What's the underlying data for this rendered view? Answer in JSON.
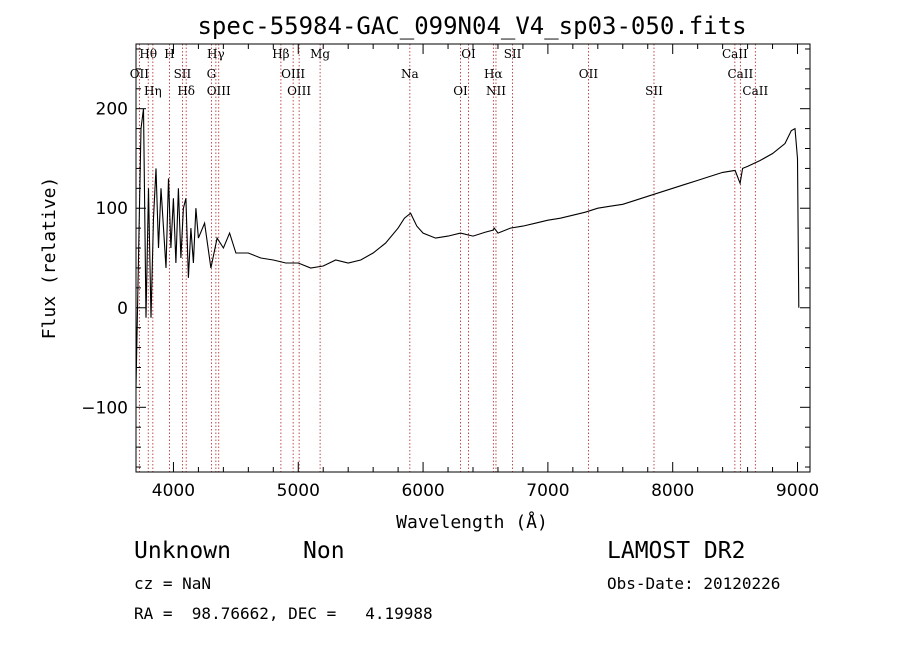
{
  "chart_data": {
    "type": "line",
    "title": "spec-55984-GAC_099N04_V4_sp03-050.fits",
    "xlabel": "Wavelength (Å)",
    "ylabel": "Flux (relative)",
    "xlim": [
      3700,
      9100
    ],
    "ylim": [
      -165,
      265
    ],
    "xticks": [
      4000,
      5000,
      6000,
      7000,
      8000,
      9000
    ],
    "yticks": [
      -100,
      0,
      100,
      200
    ],
    "grid": false,
    "series": [
      {
        "x": [
          3700,
          3720,
          3740,
          3760,
          3780,
          3800,
          3820,
          3840,
          3860,
          3880,
          3900,
          3920,
          3940,
          3960,
          3980,
          4000,
          4020,
          4040,
          4060,
          4080,
          4100,
          4120,
          4140,
          4160,
          4180,
          4200,
          4250,
          4300,
          4350,
          4400,
          4450,
          4500,
          4600,
          4700,
          4800,
          4900,
          5000,
          5100,
          5200,
          5300,
          5400,
          5500,
          5600,
          5700,
          5800,
          5850,
          5900,
          5950,
          6000,
          6100,
          6200,
          6300,
          6400,
          6500,
          6560,
          6570,
          6600,
          6700,
          6800,
          6900,
          7000,
          7100,
          7200,
          7300,
          7400,
          7500,
          7600,
          7700,
          7800,
          7900,
          8000,
          8100,
          8200,
          8300,
          8400,
          8500,
          8540,
          8560,
          8600,
          8700,
          8800,
          8900,
          8950,
          8980,
          9000,
          9010
        ],
        "y": [
          -80,
          50,
          180,
          200,
          -10,
          120,
          -10,
          90,
          140,
          60,
          120,
          80,
          40,
          130,
          60,
          110,
          45,
          120,
          50,
          100,
          110,
          30,
          80,
          45,
          100,
          70,
          85,
          40,
          70,
          60,
          75,
          55,
          55,
          50,
          48,
          45,
          45,
          40,
          42,
          48,
          45,
          48,
          55,
          65,
          80,
          90,
          95,
          82,
          75,
          70,
          72,
          75,
          72,
          76,
          78,
          80,
          75,
          80,
          82,
          85,
          88,
          90,
          93,
          96,
          100,
          102,
          104,
          108,
          112,
          116,
          120,
          124,
          128,
          132,
          136,
          138,
          125,
          140,
          142,
          148,
          155,
          165,
          178,
          180,
          150,
          0
        ],
        "label_x": [
          4000,
          5000,
          6000,
          7000,
          8000,
          9000
        ]
      }
    ],
    "line_labels": [
      {
        "text": "Hθ",
        "wave": 3798
      },
      {
        "text": "OII",
        "wave": 3727
      },
      {
        "text": "Hη",
        "wave": 3835
      },
      {
        "text": "H",
        "wave": 3968
      },
      {
        "text": "SII",
        "wave": 4072
      },
      {
        "text": "Hδ",
        "wave": 4102
      },
      {
        "text": "Hγ",
        "wave": 4340
      },
      {
        "text": "G",
        "wave": 4304
      },
      {
        "text": "OIII",
        "wave": 4363
      },
      {
        "text": "Hβ",
        "wave": 4861
      },
      {
        "text": "OIII",
        "wave": 4959
      },
      {
        "text": "OIII",
        "wave": 5007
      },
      {
        "text": "Mg",
        "wave": 5175
      },
      {
        "text": "Na",
        "wave": 5894
      },
      {
        "text": "OI",
        "wave": 6300
      },
      {
        "text": "OI",
        "wave": 6364
      },
      {
        "text": "Hα",
        "wave": 6563
      },
      {
        "text": "NII",
        "wave": 6584
      },
      {
        "text": "SII",
        "wave": 6717
      },
      {
        "text": "OII",
        "wave": 7325
      },
      {
        "text": "SII",
        "wave": 7850
      },
      {
        "text": "CaII",
        "wave": 8498
      },
      {
        "text": "CaII",
        "wave": 8542
      },
      {
        "text": "CaII",
        "wave": 8662
      }
    ]
  },
  "footer": {
    "class_text": "Unknown",
    "subclass_text": "Non",
    "survey_text": "LAMOST DR2",
    "cz_text": "cz = NaN",
    "obs_date_text": "Obs-Date: 20120226",
    "coords_text": "RA =  98.76662, DEC =   4.19988"
  }
}
